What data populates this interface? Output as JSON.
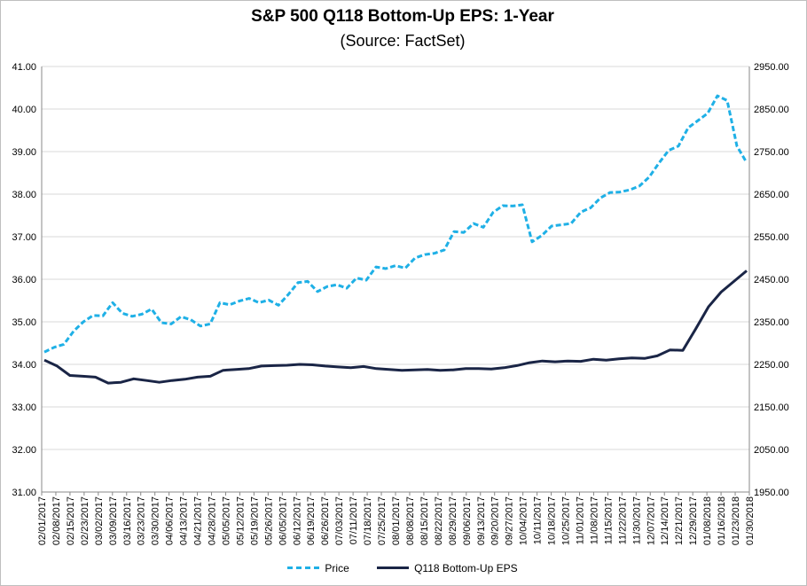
{
  "chart_data": {
    "type": "line",
    "title": "S&P 500 Q118 Bottom-Up EPS: 1-Year",
    "subtitle": "(Source: FactSet)",
    "y_left": {
      "range": [
        31,
        41
      ],
      "ticks": [
        "41.00",
        "40.00",
        "39.00",
        "38.00",
        "37.00",
        "36.00",
        "35.00",
        "34.00",
        "33.00",
        "32.00",
        "31.00"
      ]
    },
    "y_right": {
      "range": [
        1950,
        2950
      ],
      "ticks": [
        "2950.00",
        "2850.00",
        "2750.00",
        "2650.00",
        "2550.00",
        "2450.00",
        "2350.00",
        "2250.00",
        "2150.00",
        "2050.00",
        "1950.00"
      ]
    },
    "x_ticks": [
      "02/01/2017",
      "02/08/2017",
      "02/15/2017",
      "02/23/2017",
      "03/02/2017",
      "03/09/2017",
      "03/16/2017",
      "03/23/2017",
      "03/30/2017",
      "04/06/2017",
      "04/13/2017",
      "04/21/2017",
      "04/28/2017",
      "05/05/2017",
      "05/12/2017",
      "05/19/2017",
      "05/26/2017",
      "06/05/2017",
      "06/12/2017",
      "06/19/2017",
      "06/26/2017",
      "07/03/2017",
      "07/11/2017",
      "07/18/2017",
      "07/25/2017",
      "08/01/2017",
      "08/08/2017",
      "08/15/2017",
      "08/22/2017",
      "08/29/2017",
      "09/06/2017",
      "09/13/2017",
      "09/20/2017",
      "09/27/2017",
      "10/04/2017",
      "10/11/2017",
      "10/18/2017",
      "10/25/2017",
      "11/01/2017",
      "11/08/2017",
      "11/15/2017",
      "11/22/2017",
      "11/30/2017",
      "12/07/2017",
      "12/14/2017",
      "12/21/2017",
      "12/29/2017",
      "01/08/2018",
      "01/16/2018",
      "01/23/2018",
      "01/30/2018"
    ],
    "grid": "horizontal",
    "legend_position": "bottom",
    "series": [
      {
        "name": "Price",
        "axis": "right",
        "style": "dashed",
        "color": "#1fb0e6",
        "values": [
          2279,
          2290,
          2297,
          2328,
          2350,
          2365,
          2364,
          2395,
          2370,
          2363,
          2368,
          2380,
          2348,
          2345,
          2362,
          2355,
          2340,
          2345,
          2395,
          2390,
          2399,
          2405,
          2395,
          2401,
          2389,
          2414,
          2442,
          2445,
          2421,
          2433,
          2437,
          2429,
          2453,
          2448,
          2479,
          2475,
          2482,
          2476,
          2500,
          2508,
          2511,
          2519,
          2562,
          2560,
          2581,
          2572,
          2607,
          2623,
          2622,
          2625,
          2538,
          2553,
          2575,
          2578,
          2581,
          2608,
          2618,
          2641,
          2654,
          2655,
          2660,
          2669,
          2690,
          2723,
          2753,
          2763,
          2806,
          2823,
          2840,
          2881,
          2870,
          2763,
          2724
        ]
      },
      {
        "name": "Q118 Bottom-Up EPS",
        "axis": "left",
        "style": "solid",
        "color": "#1a2546",
        "values": [
          34.1,
          33.96,
          33.74,
          33.72,
          33.7,
          33.56,
          33.58,
          33.66,
          33.62,
          33.58,
          33.62,
          33.65,
          33.7,
          33.72,
          33.86,
          33.88,
          33.9,
          33.96,
          33.97,
          33.98,
          34.0,
          33.99,
          33.96,
          33.94,
          33.92,
          33.95,
          33.9,
          33.88,
          33.86,
          33.87,
          33.88,
          33.86,
          33.87,
          33.9,
          33.9,
          33.89,
          33.92,
          33.97,
          34.04,
          34.08,
          34.06,
          34.08,
          34.07,
          34.12,
          34.1,
          34.13,
          34.15,
          34.14,
          34.2,
          34.34,
          34.33,
          34.83,
          35.35,
          35.7,
          35.95,
          36.2
        ]
      }
    ]
  }
}
